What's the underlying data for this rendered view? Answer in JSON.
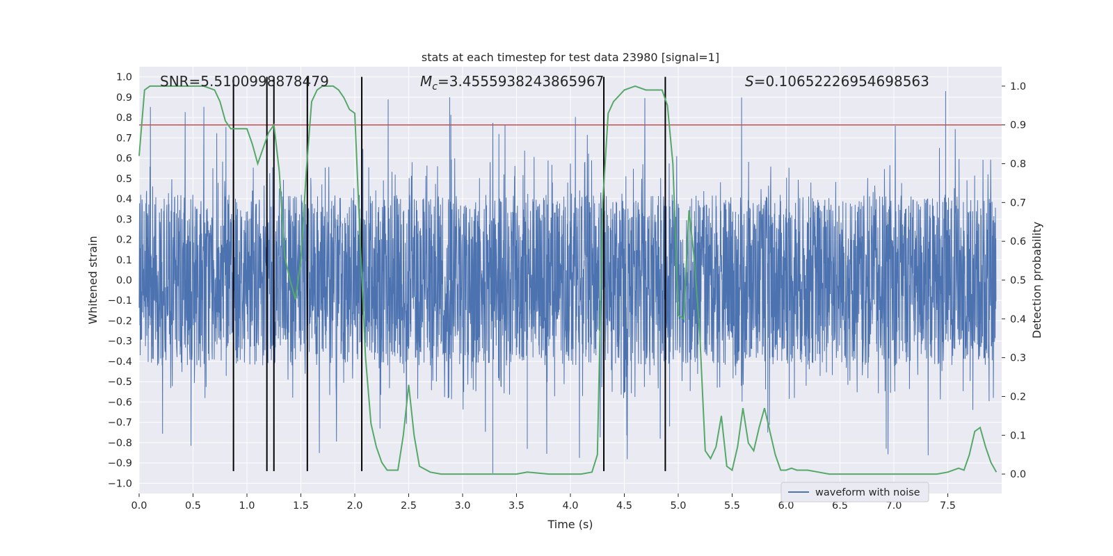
{
  "chart_data": {
    "type": "line",
    "title": "stats at each timestep for test data 23980 [signal=1]",
    "xlabel": "Time (s)",
    "ylabel": "Whitened strain",
    "ylabel_right": "Detection probability",
    "xlim": [
      0.0,
      8.0
    ],
    "ylim": [
      -1.05,
      1.05
    ],
    "ylim_right": [
      -0.05,
      1.05
    ],
    "x_ticks": [
      "0.0",
      "0.5",
      "1.0",
      "1.5",
      "2.0",
      "2.5",
      "3.0",
      "3.5",
      "4.0",
      "4.5",
      "5.0",
      "5.5",
      "6.0",
      "6.5",
      "7.0",
      "7.5"
    ],
    "y_ticks": [
      "1.0",
      "0.9",
      "0.8",
      "0.7",
      "0.6",
      "0.5",
      "0.4",
      "0.3",
      "0.2",
      "0.1",
      "0.0",
      "−0.1",
      "−0.2",
      "−0.3",
      "−0.4",
      "−0.5",
      "−0.6",
      "−0.7",
      "−0.8",
      "−0.9",
      "−1.0"
    ],
    "y_ticks_right": [
      "1.0",
      "0.9",
      "0.8",
      "0.7",
      "0.6",
      "0.5",
      "0.4",
      "0.3",
      "0.2",
      "0.1",
      "0.0"
    ],
    "annotations": {
      "snr": "SNR=5.5100998878479",
      "mc_symbol": "M",
      "mc_sub": "c",
      "mc_value": "=3.4555938243865967",
      "s_symbol": "S",
      "s_value": "=0.10652226954698563"
    },
    "legend": {
      "label": "waveform with noise",
      "location": "lower right"
    },
    "series": [
      {
        "name": "waveform with noise",
        "axis": "left",
        "color": "#4c72b0",
        "description": "noisy whitened strain sampled densely over 0–8 s, mostly within ±0.45 with spikes to about +0.94 and −0.95"
      },
      {
        "name": "detection probability",
        "axis": "right",
        "color": "#55a868",
        "x": [
          0.0,
          0.05,
          0.1,
          0.2,
          0.3,
          0.4,
          0.5,
          0.6,
          0.7,
          0.75,
          0.8,
          0.85,
          0.9,
          1.0,
          1.05,
          1.1,
          1.15,
          1.2,
          1.25,
          1.3,
          1.35,
          1.4,
          1.45,
          1.5,
          1.55,
          1.6,
          1.65,
          1.7,
          1.8,
          1.85,
          1.9,
          1.95,
          2.0,
          2.05,
          2.1,
          2.15,
          2.2,
          2.25,
          2.3,
          2.4,
          2.45,
          2.5,
          2.55,
          2.6,
          2.7,
          2.8,
          3.0,
          3.3,
          3.5,
          3.6,
          3.8,
          4.0,
          4.1,
          4.2,
          4.25,
          4.3,
          4.35,
          4.4,
          4.5,
          4.6,
          4.7,
          4.8,
          4.85,
          4.9,
          4.95,
          5.0,
          5.05,
          5.1,
          5.15,
          5.2,
          5.25,
          5.3,
          5.35,
          5.4,
          5.45,
          5.5,
          5.55,
          5.6,
          5.65,
          5.7,
          5.75,
          5.8,
          5.9,
          5.95,
          6.0,
          6.05,
          6.1,
          6.2,
          6.3,
          6.4,
          6.5,
          6.6,
          6.8,
          7.0,
          7.2,
          7.4,
          7.5,
          7.6,
          7.65,
          7.7,
          7.75,
          7.8,
          7.85,
          7.9,
          7.95
        ],
        "values": [
          0.82,
          0.99,
          1.0,
          1.0,
          1.0,
          1.0,
          1.0,
          1.0,
          0.99,
          0.96,
          0.91,
          0.89,
          0.89,
          0.89,
          0.85,
          0.8,
          0.84,
          0.88,
          0.9,
          0.78,
          0.56,
          0.5,
          0.45,
          0.55,
          0.78,
          0.96,
          0.99,
          1.0,
          1.0,
          0.99,
          0.97,
          0.94,
          0.93,
          0.6,
          0.3,
          0.13,
          0.07,
          0.03,
          0.01,
          0.01,
          0.1,
          0.23,
          0.1,
          0.02,
          0.005,
          0.0,
          0.0,
          0.0,
          0.0,
          0.005,
          0.0,
          0.0,
          0.0,
          0.005,
          0.05,
          0.7,
          0.93,
          0.96,
          0.99,
          1.0,
          0.99,
          0.99,
          0.99,
          0.95,
          0.8,
          0.41,
          0.4,
          0.68,
          0.55,
          0.36,
          0.06,
          0.04,
          0.07,
          0.15,
          0.02,
          0.01,
          0.07,
          0.17,
          0.08,
          0.06,
          0.12,
          0.17,
          0.05,
          0.01,
          0.01,
          0.015,
          0.01,
          0.01,
          0.005,
          0.0,
          0.0,
          0.0,
          0.0,
          0.0,
          0.0,
          0.0,
          0.005,
          0.015,
          0.01,
          0.05,
          0.11,
          0.12,
          0.07,
          0.03,
          0.005
        ]
      }
    ],
    "threshold": {
      "axis": "right",
      "value": 0.9,
      "color": "#c44e52"
    },
    "vlines": [
      0.875,
      1.185,
      1.25,
      1.56,
      2.065,
      4.31,
      4.88
    ],
    "vline_range_left": [
      -0.94,
      1.0
    ]
  }
}
